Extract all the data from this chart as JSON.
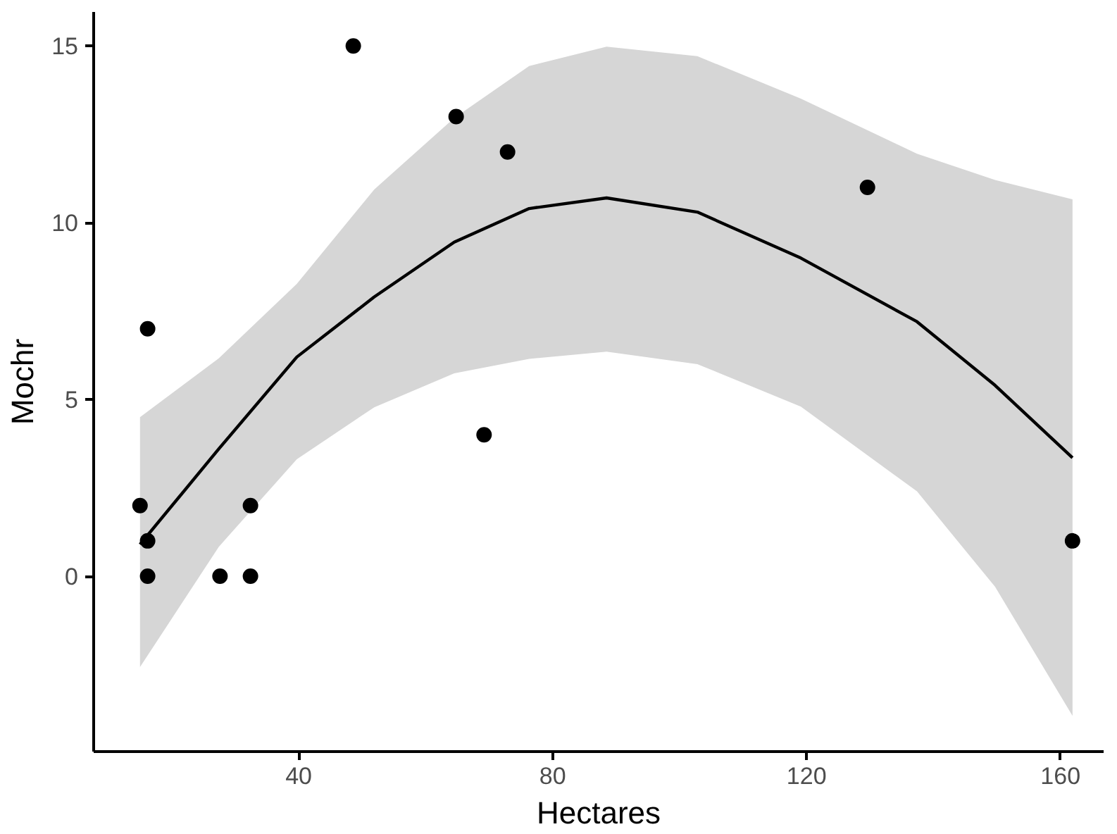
{
  "chart_data": {
    "type": "scatter",
    "xlabel": "Hectares",
    "ylabel": "Mochr",
    "xlim": [
      7.7,
      166.8
    ],
    "ylim": [
      -4.96,
      15.96
    ],
    "xticks": [
      40,
      80,
      120,
      160
    ],
    "yticks": [
      0,
      5,
      10,
      15
    ],
    "grid": false,
    "marker": "circle",
    "series": [
      {
        "color": "#000000",
        "x": [
          48.6,
          64.8,
          72.9,
          129.6,
          16.2,
          69.2,
          15.0,
          32.4,
          16.2,
          161.9,
          16.2,
          27.6,
          32.4
        ],
        "values": [
          15,
          13,
          12,
          11,
          7,
          4,
          2,
          2,
          1,
          1,
          0,
          0,
          0
        ]
      },
      {
        "type": "line",
        "color": "#000000",
        "line_style": "solid",
        "marker": "none",
        "x": [
          15,
          27.4,
          39.7,
          51.9,
          64.5,
          76.3,
          88.5,
          102.8,
          119.1,
          137.4,
          149.7,
          161.9
        ],
        "values": [
          0.9,
          3.6,
          6.2,
          7.9,
          9.45,
          10.4,
          10.7,
          10.3,
          9.0,
          7.2,
          5.4,
          3.35
        ],
        "lower": [
          -2.57,
          0.83,
          3.31,
          4.78,
          5.74,
          6.15,
          6.35,
          6.0,
          4.8,
          2.4,
          -0.3,
          -3.95
        ],
        "upper": [
          4.5,
          6.16,
          8.27,
          10.94,
          12.96,
          14.43,
          14.98,
          14.71,
          13.51,
          11.95,
          11.21,
          10.66
        ]
      }
    ]
  }
}
